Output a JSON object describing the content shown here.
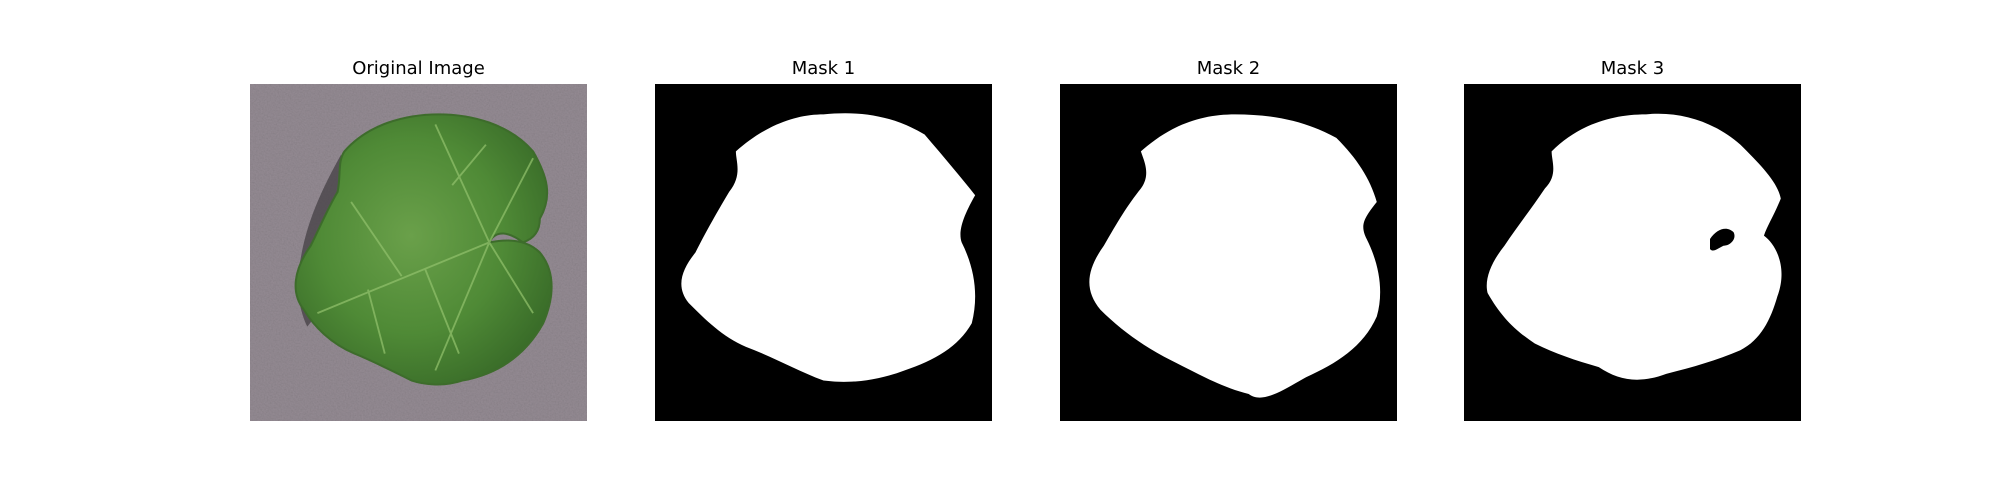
{
  "figure": {
    "panels": [
      {
        "title": "Original Image",
        "kind": "photo",
        "subject": "leaf-on-gray-surface"
      },
      {
        "title": "Mask 1",
        "kind": "binary-mask"
      },
      {
        "title": "Mask 2",
        "kind": "binary-mask"
      },
      {
        "title": "Mask 3",
        "kind": "binary-mask"
      }
    ],
    "colors": {
      "background": "#ffffff",
      "mask_background": "#000000",
      "mask_foreground": "#ffffff",
      "leaf": "#4f8a36",
      "leaf_dark": "#2f5e22",
      "surface": "#948b93"
    }
  }
}
